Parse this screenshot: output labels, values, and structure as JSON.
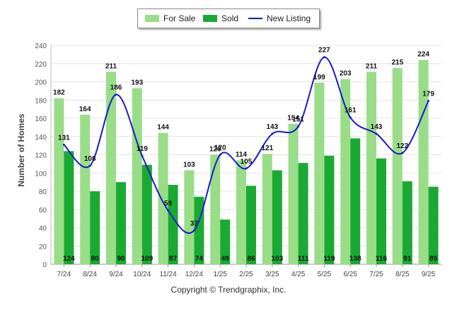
{
  "chart_data": {
    "type": "bar",
    "title": "",
    "xlabel": "",
    "ylabel": "Number of Homes",
    "ylim": [
      0,
      240
    ],
    "yticks": [
      0,
      20,
      40,
      60,
      80,
      100,
      120,
      140,
      160,
      180,
      200,
      220,
      240
    ],
    "categories": [
      "7/24",
      "8/24",
      "9/24",
      "10/24",
      "11/24",
      "12/24",
      "1/25",
      "2/25",
      "3/25",
      "4/25",
      "5/25",
      "6/25",
      "7/25",
      "8/25",
      "9/25"
    ],
    "series": [
      {
        "name": "For Sale",
        "kind": "bar",
        "color": "#99dd88",
        "values": [
          182,
          164,
          211,
          193,
          144,
          103,
          120,
          114,
          121,
          154,
          199,
          203,
          211,
          215,
          224
        ]
      },
      {
        "name": "Sold",
        "kind": "bar",
        "color": "#1aaa33",
        "values": [
          124,
          80,
          90,
          109,
          87,
          74,
          49,
          86,
          103,
          111,
          119,
          138,
          116,
          91,
          85
        ]
      },
      {
        "name": "New Listing",
        "kind": "line",
        "color": "#1a1acc",
        "values": [
          131,
          108,
          186,
          119,
          59,
          37,
          120,
          105,
          143,
          151,
          227,
          161,
          143,
          122,
          179
        ]
      }
    ],
    "legend_position": "top-center",
    "grid": true
  },
  "footer": {
    "copyright": "Copyright © Trendgraphix, Inc."
  }
}
